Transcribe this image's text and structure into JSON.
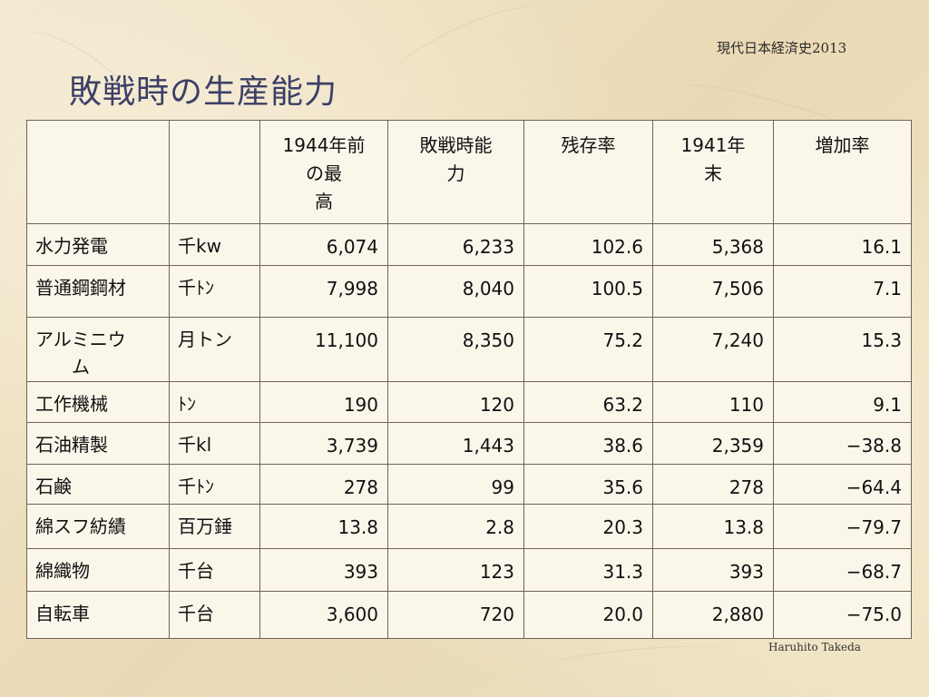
{
  "header_note": "現代日本経済史2013",
  "title": "敗戦時の生産能力",
  "footer_note": "Haruhito Takeda",
  "table": {
    "columns": [
      {
        "line1": "",
        "line2": "",
        "line3": ""
      },
      {
        "line1": "",
        "line2": "",
        "line3": ""
      },
      {
        "line1": "1944年前",
        "line2": "の最",
        "line3": "高"
      },
      {
        "line1": "敗戦時能",
        "line2": "力",
        "line3": ""
      },
      {
        "line1": "残存率",
        "line2": "",
        "line3": ""
      },
      {
        "line1": "1941年",
        "line2": "末",
        "line3": ""
      },
      {
        "line1": "増加率",
        "line2": "",
        "line3": ""
      }
    ],
    "rows": [
      {
        "name_line1": "水力発電",
        "name_line2": "",
        "unit": "千kw",
        "peak_1944": "6,074",
        "capacity_at_defeat": "6,233",
        "survival_rate": "102.6",
        "end_1941": "5,368",
        "increase_rate": "16.1"
      },
      {
        "name_line1": "普通鋼鋼材",
        "name_line2": "",
        "unit": "千ﾄﾝ",
        "peak_1944": "7,998",
        "capacity_at_defeat": "8,040",
        "survival_rate": "100.5",
        "end_1941": "7,506",
        "increase_rate": "7.1"
      },
      {
        "name_line1": "アルミニウ",
        "name_line2": "ム",
        "unit": "月トン",
        "peak_1944": "11,100",
        "capacity_at_defeat": "8,350",
        "survival_rate": "75.2",
        "end_1941": "7,240",
        "increase_rate": "15.3"
      },
      {
        "name_line1": "工作機械",
        "name_line2": "",
        "unit": "ﾄﾝ",
        "peak_1944": "190",
        "capacity_at_defeat": "120",
        "survival_rate": "63.2",
        "end_1941": "110",
        "increase_rate": "9.1"
      },
      {
        "name_line1": "石油精製",
        "name_line2": "",
        "unit": "千kl",
        "peak_1944": "3,739",
        "capacity_at_defeat": "1,443",
        "survival_rate": "38.6",
        "end_1941": "2,359",
        "increase_rate": "−38.8"
      },
      {
        "name_line1": "石鹸",
        "name_line2": "",
        "unit": "千ﾄﾝ",
        "peak_1944": "278",
        "capacity_at_defeat": "99",
        "survival_rate": "35.6",
        "end_1941": "278",
        "increase_rate": "−64.4"
      },
      {
        "name_line1": "綿スフ紡績",
        "name_line2": "",
        "unit": "百万錘",
        "peak_1944": "13.8",
        "capacity_at_defeat": "2.8",
        "survival_rate": "20.3",
        "end_1941": "13.8",
        "increase_rate": "−79.7"
      },
      {
        "name_line1": "綿織物",
        "name_line2": "",
        "unit": "千台",
        "peak_1944": "393",
        "capacity_at_defeat": "123",
        "survival_rate": "31.3",
        "end_1941": "393",
        "increase_rate": "−68.7"
      },
      {
        "name_line1": "自転車",
        "name_line2": "",
        "unit": "千台",
        "peak_1944": "3,600",
        "capacity_at_defeat": "720",
        "survival_rate": "20.0",
        "end_1941": "2,880",
        "increase_rate": "−75.0"
      }
    ]
  }
}
